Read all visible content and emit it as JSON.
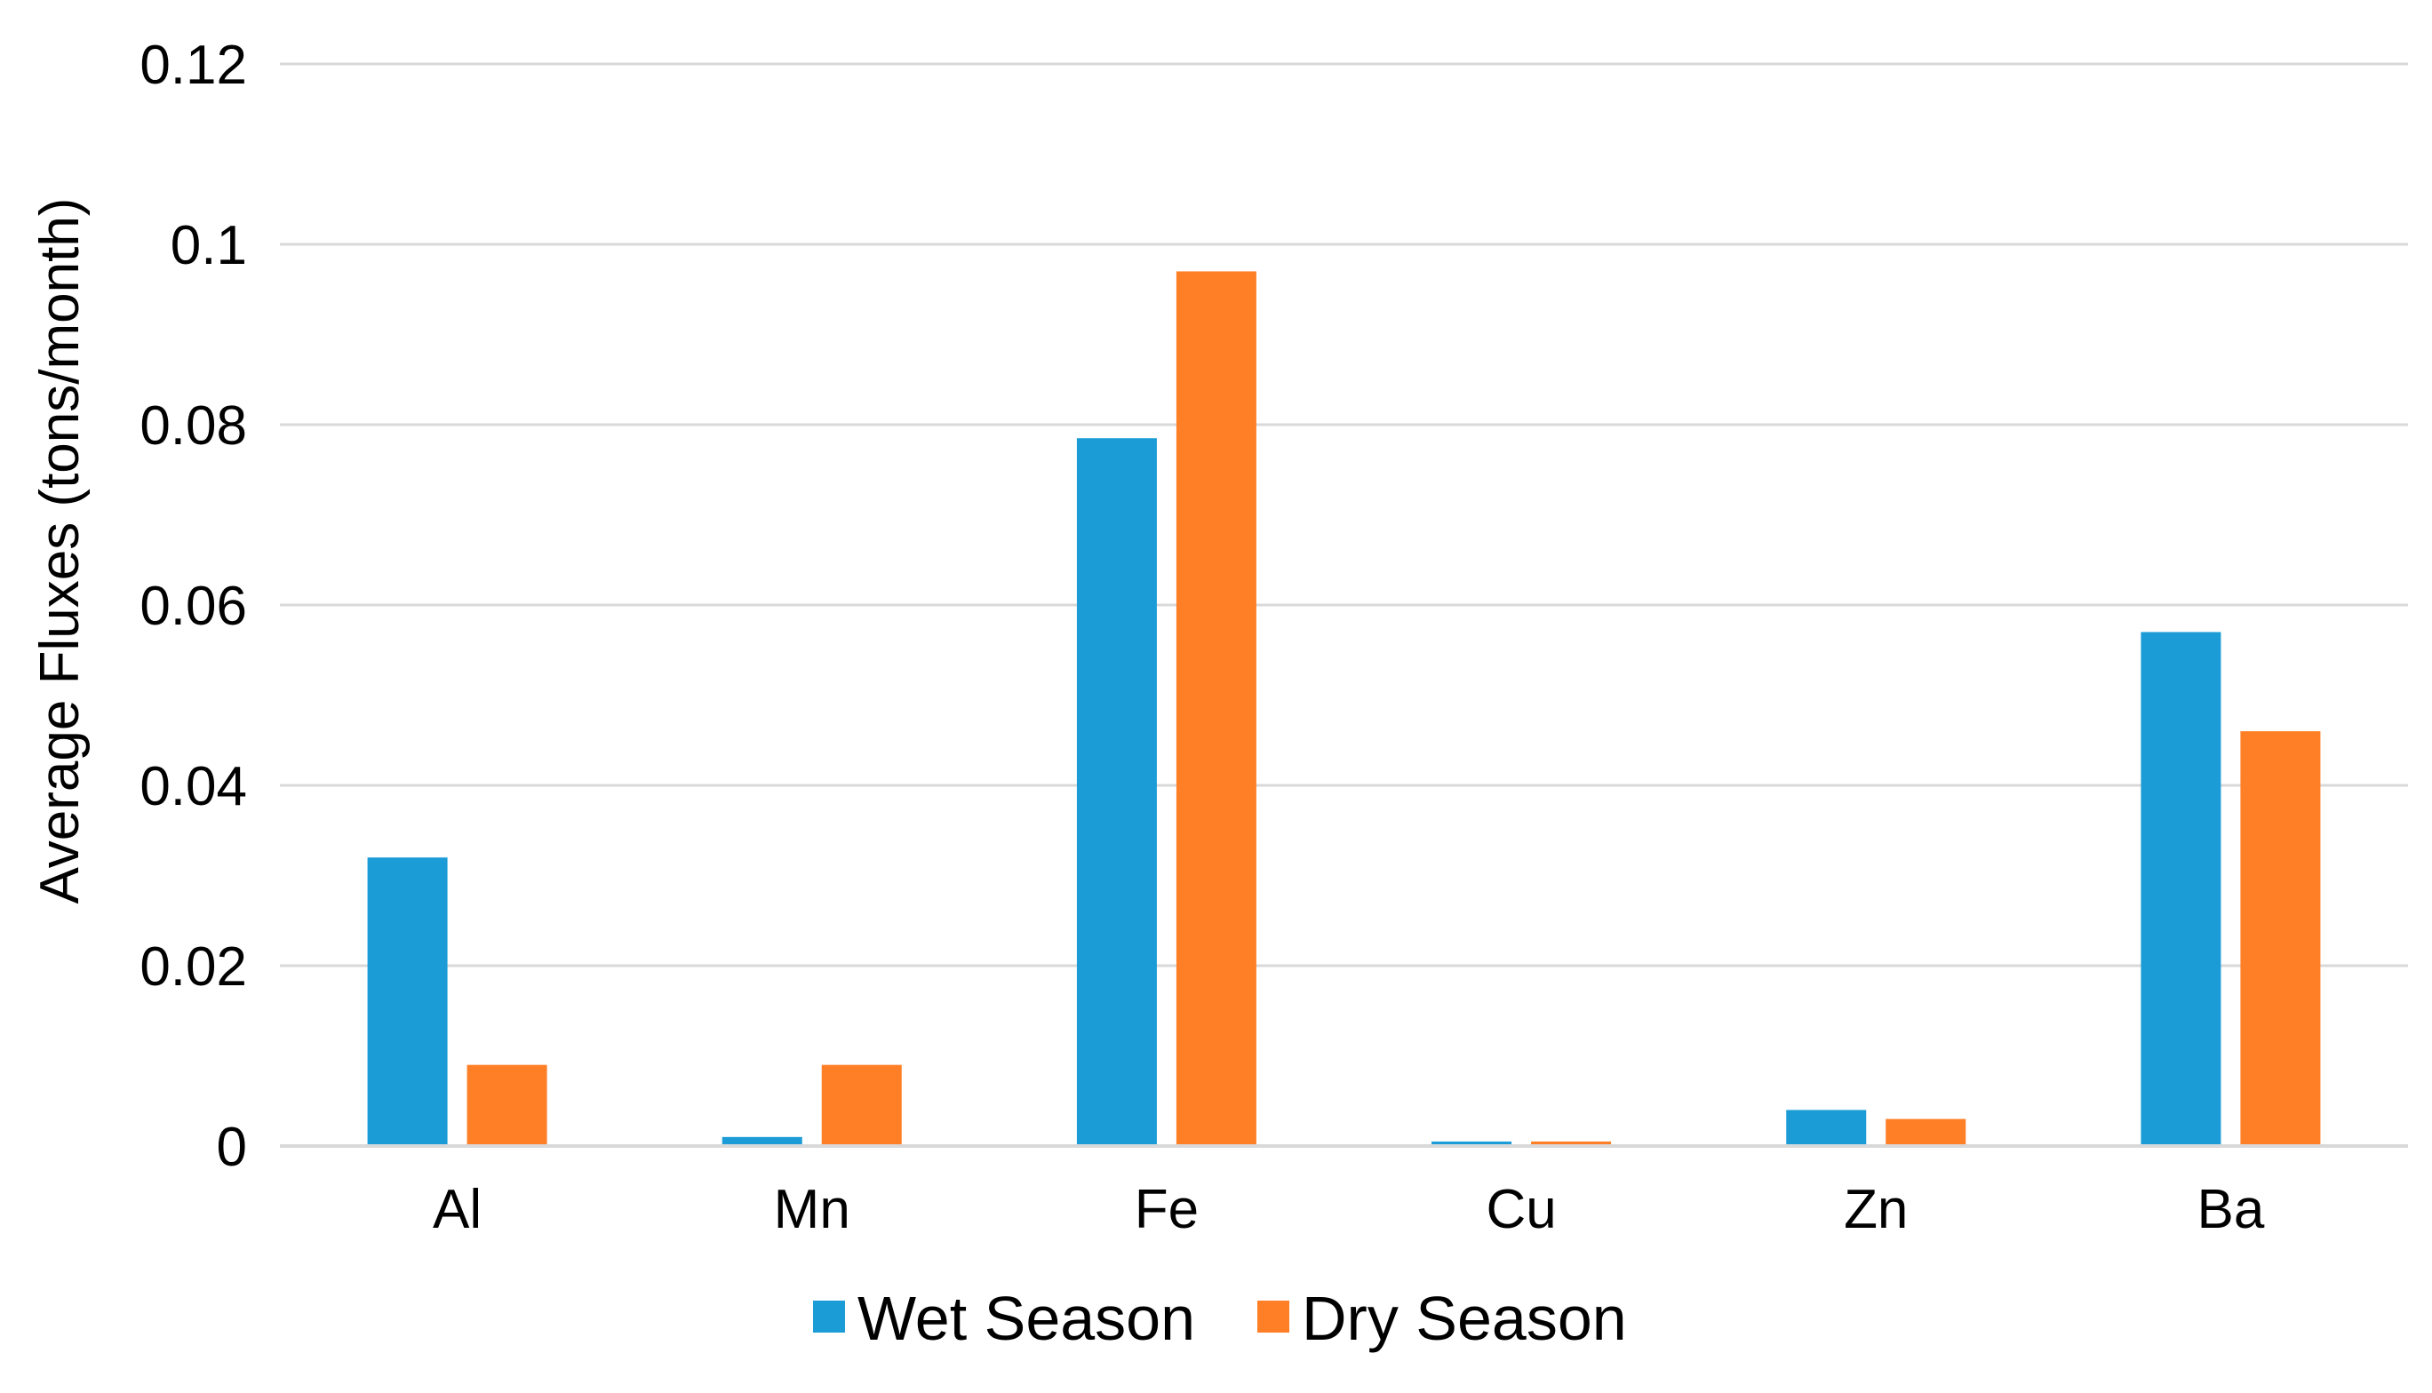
{
  "chart_data": {
    "type": "bar",
    "title": "",
    "xlabel": "",
    "ylabel": "Average Fluxes (tons/month)",
    "categories": [
      "Al",
      "Mn",
      "Fe",
      "Cu",
      "Zn",
      "Ba"
    ],
    "series": [
      {
        "name": "Wet Season",
        "color": "#1B9CD7",
        "values": [
          0.032,
          0.001,
          0.0785,
          0.0005,
          0.004,
          0.057
        ]
      },
      {
        "name": "Dry Season",
        "color": "#FF7F27",
        "values": [
          0.009,
          0.009,
          0.097,
          0.0005,
          0.003,
          0.046
        ]
      }
    ],
    "ylim": [
      0,
      0.12
    ],
    "yticks": [
      "0",
      "0.02",
      "0.04",
      "0.06",
      "0.08",
      "0.1",
      "0.12"
    ],
    "grid": true,
    "legend_position": "bottom"
  }
}
